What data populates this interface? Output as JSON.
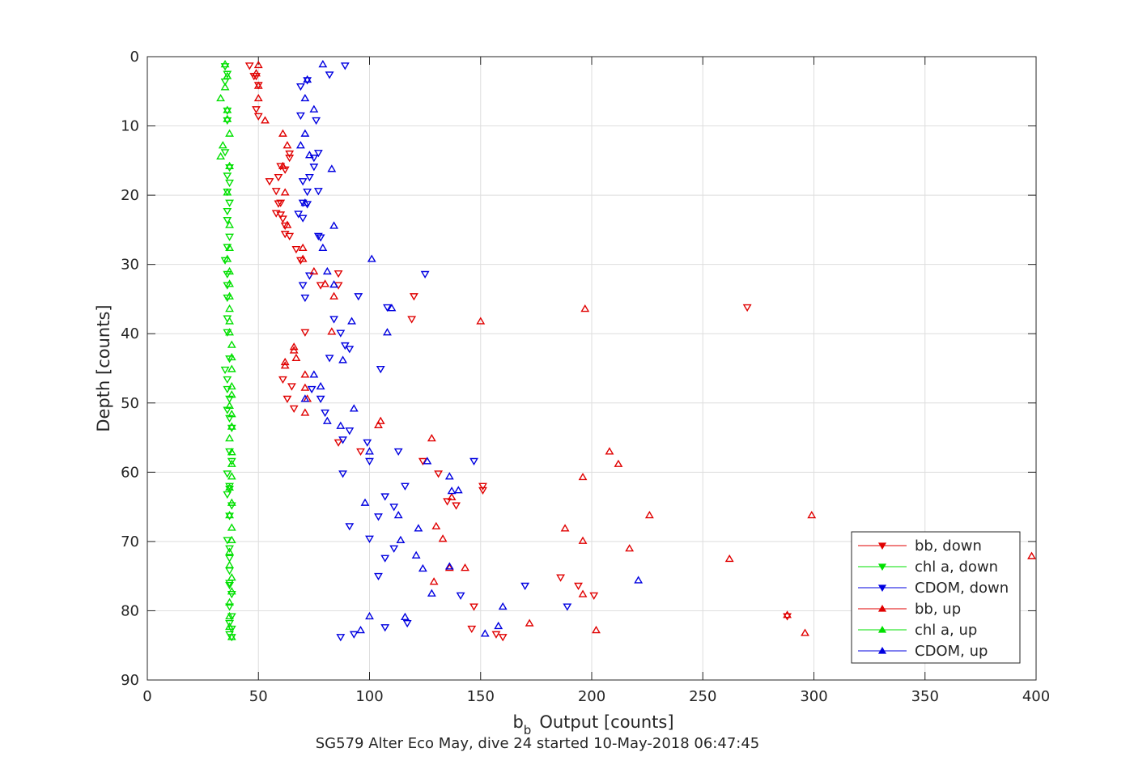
{
  "chart_data": {
    "type": "scatter",
    "title": "",
    "caption": "SG579 Alter Eco May, dive 24 started 10-May-2018 06:47:45",
    "xlabel_main": "b",
    "xlabel_sub": "b",
    "xlabel_rest": "Output [counts]",
    "ylabel": "Depth [counts]",
    "xlim": [
      0,
      400
    ],
    "ylim": [
      0,
      90
    ],
    "y_reversed": true,
    "grid": true,
    "legend_position": "bottom-right",
    "x_ticks": [
      "0",
      "50",
      "100",
      "150",
      "200",
      "250",
      "300",
      "350",
      "400"
    ],
    "y_ticks": [
      "0",
      "10",
      "20",
      "30",
      "40",
      "50",
      "60",
      "70",
      "80",
      "90"
    ],
    "series": [
      {
        "name": "bb, down",
        "color": "#e00000",
        "marker": "triangle-down",
        "points": [
          [
            46,
            1.3
          ],
          [
            48,
            2.8
          ],
          [
            49,
            2.8
          ],
          [
            50,
            4.1
          ],
          [
            49,
            7.6
          ],
          [
            50,
            8.6
          ],
          [
            64,
            14
          ],
          [
            64,
            14.6
          ],
          [
            60,
            15.8
          ],
          [
            59,
            17.4
          ],
          [
            62,
            16.3
          ],
          [
            55,
            18
          ],
          [
            58,
            19.4
          ],
          [
            59,
            21.2
          ],
          [
            60,
            21.1
          ],
          [
            58,
            22.6
          ],
          [
            60,
            22.8
          ],
          [
            61,
            23.4
          ],
          [
            62,
            24.4
          ],
          [
            62,
            25.6
          ],
          [
            64,
            25.9
          ],
          [
            67,
            27.8
          ],
          [
            69,
            29.4
          ],
          [
            86,
            31.3
          ],
          [
            86,
            33
          ],
          [
            78,
            33
          ],
          [
            120,
            34.6
          ],
          [
            119,
            37.9
          ],
          [
            71,
            39.8
          ],
          [
            270,
            36.2
          ],
          [
            61,
            46.6
          ],
          [
            65,
            47.6
          ],
          [
            63,
            49.4
          ],
          [
            66,
            50.8
          ],
          [
            86,
            55.7
          ],
          [
            96,
            57
          ],
          [
            124,
            58.4
          ],
          [
            131,
            60.2
          ],
          [
            151,
            62
          ],
          [
            151,
            62.6
          ],
          [
            135,
            64.2
          ],
          [
            139,
            64.8
          ],
          [
            186,
            75.2
          ],
          [
            194,
            76.4
          ],
          [
            201,
            77.8
          ],
          [
            147,
            79.4
          ],
          [
            157,
            83.4
          ],
          [
            160,
            83.8
          ],
          [
            146,
            82.6
          ],
          [
            288,
            80.8
          ]
        ]
      },
      {
        "name": "chl a, down",
        "color": "#00e000",
        "marker": "triangle-down",
        "points": [
          [
            35,
            1.4
          ],
          [
            36,
            2.5
          ],
          [
            35,
            3.6
          ],
          [
            36,
            7.8
          ],
          [
            36,
            9.2
          ],
          [
            35,
            13.8
          ],
          [
            37,
            16
          ],
          [
            36,
            17.2
          ],
          [
            37,
            18.2
          ],
          [
            36,
            19.5
          ],
          [
            37,
            21.1
          ],
          [
            36,
            22.3
          ],
          [
            36,
            23.6
          ],
          [
            37,
            26
          ],
          [
            36,
            27.5
          ],
          [
            35,
            29.4
          ],
          [
            36,
            31.4
          ],
          [
            36,
            33
          ],
          [
            36,
            34.8
          ],
          [
            36,
            37.8
          ],
          [
            36,
            39.8
          ],
          [
            37,
            43.6
          ],
          [
            35,
            45.2
          ],
          [
            36,
            46.6
          ],
          [
            36,
            48
          ],
          [
            37,
            49.4
          ],
          [
            36,
            51
          ],
          [
            37,
            52.2
          ],
          [
            38,
            53.6
          ],
          [
            37,
            57
          ],
          [
            38,
            58.4
          ],
          [
            36,
            60.2
          ],
          [
            37,
            62
          ],
          [
            37,
            62.4
          ],
          [
            36,
            63.2
          ],
          [
            38,
            64.8
          ],
          [
            37,
            66.3
          ],
          [
            36,
            69.8
          ],
          [
            37,
            71
          ],
          [
            37,
            72.4
          ],
          [
            37,
            74.2
          ],
          [
            37,
            76
          ],
          [
            37,
            76.3
          ],
          [
            38,
            77.6
          ],
          [
            37,
            79.4
          ],
          [
            38,
            80.8
          ],
          [
            37,
            81.8
          ],
          [
            38,
            82.6
          ],
          [
            37,
            83.4
          ],
          [
            38,
            83.8
          ]
        ]
      },
      {
        "name": "CDOM, down",
        "color": "#0000e0",
        "marker": "triangle-down",
        "points": [
          [
            89,
            1.3
          ],
          [
            82,
            2.6
          ],
          [
            72,
            3.4
          ],
          [
            69,
            4.3
          ],
          [
            76,
            9.2
          ],
          [
            69,
            8.5
          ],
          [
            77,
            13.9
          ],
          [
            75,
            14.6
          ],
          [
            75,
            15.9
          ],
          [
            73,
            17.4
          ],
          [
            70,
            18
          ],
          [
            72,
            19.5
          ],
          [
            77,
            19.4
          ],
          [
            70,
            21.1
          ],
          [
            72,
            21.3
          ],
          [
            68,
            22.7
          ],
          [
            70,
            23.3
          ],
          [
            77,
            25.9
          ],
          [
            78,
            26.1
          ],
          [
            125,
            31.4
          ],
          [
            73,
            31.6
          ],
          [
            70,
            33
          ],
          [
            71,
            34.8
          ],
          [
            95,
            34.6
          ],
          [
            108,
            36.2
          ],
          [
            84,
            37.9
          ],
          [
            87,
            39.9
          ],
          [
            89,
            41.7
          ],
          [
            91,
            42.2
          ],
          [
            82,
            43.5
          ],
          [
            105,
            45.1
          ],
          [
            74,
            48
          ],
          [
            78,
            49.4
          ],
          [
            80,
            51.4
          ],
          [
            91,
            54
          ],
          [
            88,
            55.3
          ],
          [
            99,
            55.7
          ],
          [
            113,
            57
          ],
          [
            100,
            58.4
          ],
          [
            147,
            58.4
          ],
          [
            88,
            60.2
          ],
          [
            116,
            62
          ],
          [
            107,
            63.5
          ],
          [
            111,
            65
          ],
          [
            104,
            66.4
          ],
          [
            91,
            67.8
          ],
          [
            100,
            69.6
          ],
          [
            111,
            71
          ],
          [
            107,
            72.4
          ],
          [
            104,
            75
          ],
          [
            170,
            76.4
          ],
          [
            141,
            77.8
          ],
          [
            189,
            79.4
          ],
          [
            107,
            82.4
          ],
          [
            117,
            81.8
          ],
          [
            87,
            83.8
          ],
          [
            93,
            83.4
          ]
        ]
      },
      {
        "name": "bb, up",
        "color": "#e00000",
        "marker": "triangle-up",
        "points": [
          [
            50,
            1.2
          ],
          [
            49,
            2.4
          ],
          [
            50,
            4.2
          ],
          [
            50,
            6
          ],
          [
            53,
            9.2
          ],
          [
            61,
            11.1
          ],
          [
            63,
            12.8
          ],
          [
            61,
            15.8
          ],
          [
            62,
            19.6
          ],
          [
            63,
            24.3
          ],
          [
            70,
            27.6
          ],
          [
            70,
            29.2
          ],
          [
            75,
            31
          ],
          [
            80,
            32.8
          ],
          [
            84,
            34.6
          ],
          [
            83,
            39.7
          ],
          [
            197,
            36.4
          ],
          [
            150,
            38.2
          ],
          [
            66,
            41.9
          ],
          [
            66,
            42.4
          ],
          [
            67,
            43.5
          ],
          [
            62,
            44.1
          ],
          [
            62,
            44.6
          ],
          [
            71,
            45.9
          ],
          [
            71,
            47.8
          ],
          [
            72,
            49.4
          ],
          [
            71,
            51.4
          ],
          [
            105,
            52.6
          ],
          [
            104,
            53.2
          ],
          [
            128,
            55.1
          ],
          [
            208,
            57
          ],
          [
            212,
            58.8
          ],
          [
            196,
            60.7
          ],
          [
            137,
            63.6
          ],
          [
            130,
            67.8
          ],
          [
            188,
            68.1
          ],
          [
            226,
            66.2
          ],
          [
            299,
            66.2
          ],
          [
            133,
            69.6
          ],
          [
            196,
            69.9
          ],
          [
            217,
            71
          ],
          [
            262,
            72.5
          ],
          [
            398,
            72.1
          ],
          [
            143,
            73.8
          ],
          [
            136,
            73.8
          ],
          [
            129,
            75.8
          ],
          [
            196,
            77.6
          ],
          [
            202,
            82.8
          ],
          [
            172,
            81.8
          ],
          [
            296,
            83.2
          ],
          [
            288,
            80.6
          ]
        ]
      },
      {
        "name": "chl a, up",
        "color": "#00e000",
        "marker": "triangle-up",
        "points": [
          [
            35,
            1.1
          ],
          [
            36,
            2.8
          ],
          [
            35,
            4.4
          ],
          [
            33,
            6
          ],
          [
            36,
            7.7
          ],
          [
            36,
            9
          ],
          [
            37,
            11.1
          ],
          [
            34,
            12.8
          ],
          [
            33,
            14.4
          ],
          [
            37,
            15.8
          ],
          [
            36,
            19.6
          ],
          [
            37,
            24.3
          ],
          [
            37,
            27.6
          ],
          [
            36,
            29.2
          ],
          [
            37,
            31
          ],
          [
            37,
            32.8
          ],
          [
            37,
            34.6
          ],
          [
            37,
            36.4
          ],
          [
            37,
            38.2
          ],
          [
            37,
            39.8
          ],
          [
            38,
            41.6
          ],
          [
            38,
            43.4
          ],
          [
            38,
            45.1
          ],
          [
            38,
            47.6
          ],
          [
            38,
            48.8
          ],
          [
            37,
            50.4
          ],
          [
            38,
            51.6
          ],
          [
            38,
            53.4
          ],
          [
            37,
            55.1
          ],
          [
            38,
            57.1
          ],
          [
            38,
            58.8
          ],
          [
            38,
            60.6
          ],
          [
            37,
            62.2
          ],
          [
            38,
            64.4
          ],
          [
            37,
            66.2
          ],
          [
            38,
            68
          ],
          [
            38,
            69.8
          ],
          [
            37,
            71.5
          ],
          [
            37,
            73.4
          ],
          [
            38,
            75.2
          ],
          [
            38,
            77.2
          ],
          [
            37,
            78.8
          ],
          [
            37,
            80.8
          ],
          [
            37,
            82.3
          ],
          [
            38,
            83.8
          ]
        ]
      },
      {
        "name": "CDOM, up",
        "color": "#0000e0",
        "marker": "triangle-up",
        "points": [
          [
            79,
            1.1
          ],
          [
            72,
            3.3
          ],
          [
            71,
            6
          ],
          [
            75,
            7.6
          ],
          [
            71,
            11.1
          ],
          [
            69,
            12.8
          ],
          [
            73,
            14.2
          ],
          [
            83,
            16.2
          ],
          [
            71,
            21.1
          ],
          [
            84,
            24.4
          ],
          [
            79,
            27.6
          ],
          [
            101,
            29.2
          ],
          [
            81,
            31
          ],
          [
            84,
            32.9
          ],
          [
            110,
            36.3
          ],
          [
            92,
            38.2
          ],
          [
            108,
            39.8
          ],
          [
            88,
            43.8
          ],
          [
            75,
            45.9
          ],
          [
            78,
            47.6
          ],
          [
            71,
            49.4
          ],
          [
            93,
            50.8
          ],
          [
            81,
            52.6
          ],
          [
            87,
            53.3
          ],
          [
            126,
            58.4
          ],
          [
            100,
            57
          ],
          [
            136,
            60.6
          ],
          [
            137,
            62.7
          ],
          [
            140,
            62.6
          ],
          [
            98,
            64.4
          ],
          [
            113,
            66.2
          ],
          [
            122,
            68.1
          ],
          [
            114,
            69.8
          ],
          [
            121,
            72
          ],
          [
            124,
            73.9
          ],
          [
            136,
            73.6
          ],
          [
            128,
            77.5
          ],
          [
            221,
            75.6
          ],
          [
            160,
            79.4
          ],
          [
            100,
            80.8
          ],
          [
            116,
            80.9
          ],
          [
            158,
            82.2
          ],
          [
            152,
            83.3
          ],
          [
            96,
            82.8
          ]
        ]
      }
    ]
  }
}
